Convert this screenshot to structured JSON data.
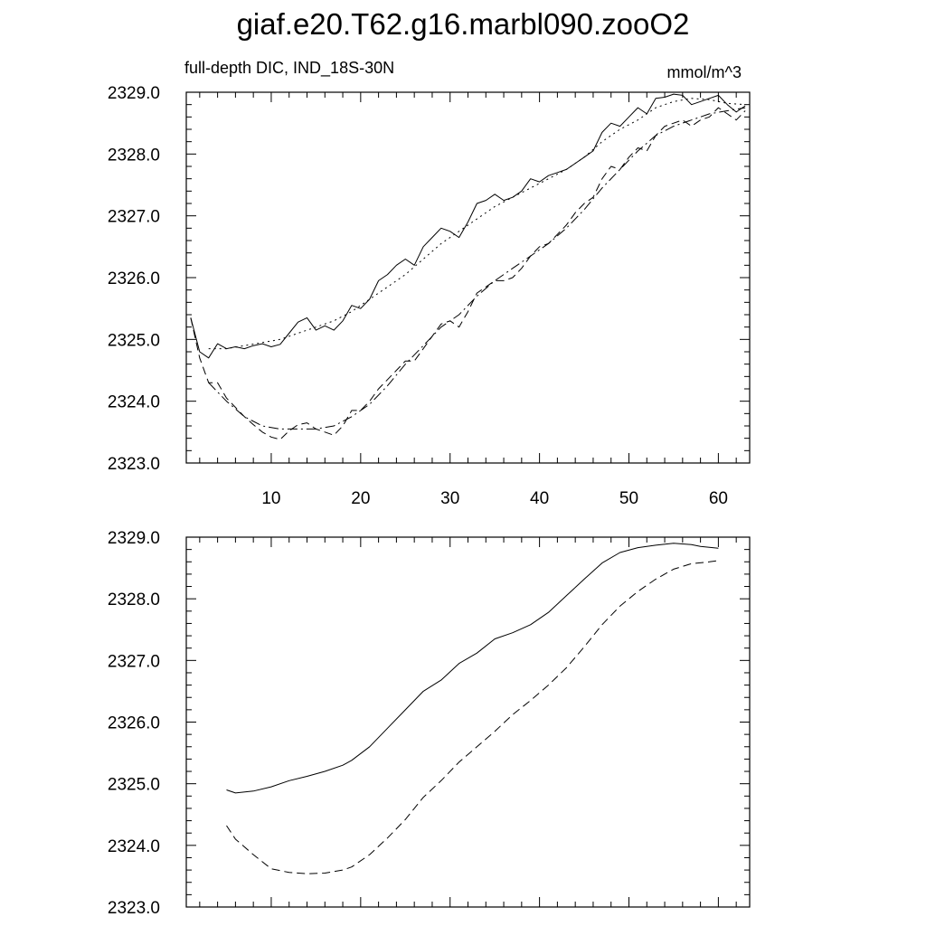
{
  "title": "giaf.e20.T62.g16.marbl090.zooO2",
  "chart_data": [
    {
      "type": "line",
      "subtitle_left": "full-depth DIC, IND_18S-30N",
      "subtitle_right": "mmol/m^3",
      "xlim": [
        0.5,
        63.5
      ],
      "ylim": [
        2323.0,
        2329.0
      ],
      "xticks": [
        10,
        20,
        30,
        40,
        50,
        60
      ],
      "xtick_labels": [
        "10",
        "20",
        "30",
        "40",
        "50",
        "60"
      ],
      "yticks": [
        2323.0,
        2324.0,
        2325.0,
        2326.0,
        2327.0,
        2328.0,
        2329.0
      ],
      "ytick_labels": [
        "2323.0",
        "2324.0",
        "2325.0",
        "2326.0",
        "2327.0",
        "2328.0",
        "2329.0"
      ],
      "series": [
        {
          "style": "solid",
          "x": [
            1,
            2,
            3,
            4,
            5,
            6,
            7,
            8,
            9,
            10,
            11,
            12,
            13,
            14,
            15,
            16,
            17,
            18,
            19,
            20,
            21,
            22,
            23,
            24,
            25,
            26,
            27,
            28,
            29,
            30,
            31,
            32,
            33,
            34,
            35,
            36,
            37,
            38,
            39,
            40,
            41,
            42,
            43,
            44,
            45,
            46,
            47,
            48,
            49,
            50,
            51,
            52,
            53,
            54,
            55,
            56,
            57,
            58,
            59,
            60,
            61,
            62,
            63
          ],
          "values": [
            2325.35,
            2324.8,
            2324.7,
            2324.93,
            2324.85,
            2324.88,
            2324.85,
            2324.9,
            2324.93,
            2324.88,
            2324.92,
            2325.1,
            2325.28,
            2325.35,
            2325.15,
            2325.22,
            2325.15,
            2325.3,
            2325.55,
            2325.5,
            2325.65,
            2325.95,
            2326.05,
            2326.2,
            2326.3,
            2326.2,
            2326.5,
            2326.65,
            2326.8,
            2326.75,
            2326.65,
            2326.9,
            2327.2,
            2327.25,
            2327.35,
            2327.25,
            2327.3,
            2327.4,
            2327.6,
            2327.55,
            2327.65,
            2327.7,
            2327.75,
            2327.85,
            2327.95,
            2328.05,
            2328.35,
            2328.5,
            2328.45,
            2328.6,
            2328.75,
            2328.65,
            2328.9,
            2328.92,
            2328.97,
            2328.95,
            2328.8,
            2328.85,
            2328.9,
            2328.95,
            2328.8,
            2328.68,
            2328.78
          ]
        },
        {
          "style": "dotted",
          "x": [
            3,
            5,
            7,
            9,
            11,
            13,
            15,
            17,
            19,
            21,
            23,
            25,
            27,
            29,
            31,
            33,
            35,
            37,
            39,
            41,
            43,
            45,
            47,
            49,
            51,
            53,
            55,
            57,
            59,
            61,
            63
          ],
          "values": [
            2324.85,
            2324.85,
            2324.9,
            2324.95,
            2325.0,
            2325.1,
            2325.2,
            2325.3,
            2325.45,
            2325.65,
            2325.85,
            2326.05,
            2326.3,
            2326.55,
            2326.75,
            2326.95,
            2327.15,
            2327.3,
            2327.45,
            2327.6,
            2327.75,
            2327.95,
            2328.2,
            2328.4,
            2328.55,
            2328.75,
            2328.85,
            2328.9,
            2328.88,
            2328.82,
            2328.8
          ]
        },
        {
          "style": "dashed",
          "x": [
            1,
            2,
            3,
            4,
            5,
            6,
            7,
            8,
            9,
            10,
            11,
            12,
            13,
            14,
            15,
            16,
            17,
            18,
            19,
            20,
            21,
            22,
            23,
            24,
            25,
            26,
            27,
            28,
            29,
            30,
            31,
            32,
            33,
            34,
            35,
            36,
            37,
            38,
            39,
            40,
            41,
            42,
            43,
            44,
            45,
            46,
            47,
            48,
            49,
            50,
            51,
            52,
            53,
            54,
            55,
            56,
            57,
            58,
            59,
            60,
            61,
            62,
            63
          ],
          "values": [
            2325.35,
            2324.7,
            2324.3,
            2324.3,
            2324.05,
            2323.9,
            2323.75,
            2323.62,
            2323.5,
            2323.42,
            2323.38,
            2323.52,
            2323.62,
            2323.65,
            2323.55,
            2323.5,
            2323.45,
            2323.6,
            2323.85,
            2323.85,
            2324.0,
            2324.2,
            2324.35,
            2324.5,
            2324.65,
            2324.65,
            2324.85,
            2325.05,
            2325.25,
            2325.3,
            2325.2,
            2325.45,
            2325.75,
            2325.85,
            2325.95,
            2325.95,
            2326.0,
            2326.15,
            2326.35,
            2326.5,
            2326.55,
            2326.7,
            2326.85,
            2327.05,
            2327.2,
            2327.3,
            2327.6,
            2327.8,
            2327.75,
            2327.95,
            2328.1,
            2328.05,
            2328.3,
            2328.45,
            2328.5,
            2328.55,
            2328.45,
            2328.55,
            2328.6,
            2328.75,
            2328.65,
            2328.55,
            2328.7
          ]
        },
        {
          "style": "dash-dot",
          "x": [
            3,
            5,
            7,
            9,
            11,
            13,
            15,
            17,
            19,
            21,
            23,
            25,
            27,
            29,
            31,
            33,
            35,
            37,
            39,
            41,
            43,
            45,
            47,
            49,
            51,
            53,
            55,
            57,
            59,
            61,
            63
          ],
          "values": [
            2324.3,
            2324.0,
            2323.75,
            2323.6,
            2323.55,
            2323.55,
            2323.55,
            2323.6,
            2323.75,
            2323.95,
            2324.25,
            2324.6,
            2324.9,
            2325.2,
            2325.4,
            2325.7,
            2325.95,
            2326.15,
            2326.35,
            2326.55,
            2326.8,
            2327.1,
            2327.45,
            2327.75,
            2328.05,
            2328.3,
            2328.45,
            2328.55,
            2328.65,
            2328.7,
            2328.75
          ]
        }
      ]
    },
    {
      "type": "line",
      "xlim": [
        0.5,
        63.5
      ],
      "ylim": [
        2323.0,
        2329.0
      ],
      "xticks": [
        10,
        20,
        30,
        40,
        50,
        60
      ],
      "xtick_labels": [],
      "yticks": [
        2323.0,
        2324.0,
        2325.0,
        2326.0,
        2327.0,
        2328.0,
        2329.0
      ],
      "ytick_labels": [
        "2323.0",
        "2324.0",
        "2325.0",
        "2326.0",
        "2327.0",
        "2328.0",
        "2329.0"
      ],
      "series": [
        {
          "style": "solid",
          "x": [
            5,
            6,
            8,
            10,
            12,
            14,
            16,
            18,
            19,
            21,
            23,
            25,
            27,
            29,
            31,
            33,
            35,
            37,
            39,
            41,
            43,
            45,
            47,
            49,
            51,
            53,
            55,
            57,
            58,
            60
          ],
          "values": [
            2324.9,
            2324.85,
            2324.88,
            2324.95,
            2325.05,
            2325.12,
            2325.2,
            2325.3,
            2325.38,
            2325.6,
            2325.9,
            2326.2,
            2326.5,
            2326.68,
            2326.95,
            2327.12,
            2327.35,
            2327.45,
            2327.58,
            2327.78,
            2328.05,
            2328.32,
            2328.58,
            2328.75,
            2328.83,
            2328.87,
            2328.9,
            2328.88,
            2328.85,
            2328.82
          ]
        },
        {
          "style": "dashed",
          "x": [
            5,
            6,
            8,
            10,
            12,
            14,
            16,
            18,
            19,
            21,
            23,
            25,
            27,
            29,
            31,
            33,
            35,
            37,
            39,
            41,
            43,
            45,
            47,
            49,
            51,
            53,
            55,
            57,
            59,
            60
          ],
          "values": [
            2324.32,
            2324.1,
            2323.85,
            2323.62,
            2323.56,
            2323.54,
            2323.55,
            2323.6,
            2323.65,
            2323.85,
            2324.12,
            2324.42,
            2324.78,
            2325.05,
            2325.35,
            2325.6,
            2325.85,
            2326.12,
            2326.35,
            2326.6,
            2326.88,
            2327.22,
            2327.58,
            2327.88,
            2328.12,
            2328.32,
            2328.48,
            2328.57,
            2328.6,
            2328.62
          ]
        }
      ]
    }
  ]
}
